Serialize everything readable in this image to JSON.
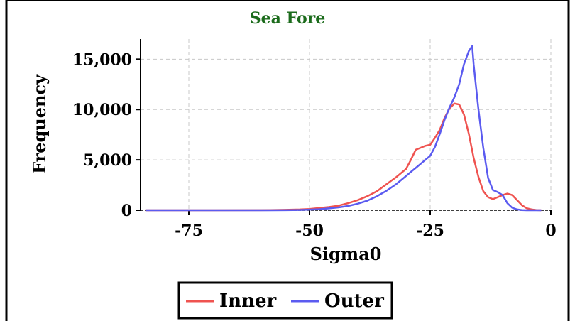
{
  "colors": {
    "inner": "#ef5350",
    "outer": "#5b5bf0",
    "title": "#1b6b1b",
    "grid": "#c8c8c8"
  },
  "chart_data": {
    "type": "line",
    "title": "Sea Fore",
    "xlabel": "Sigma0",
    "ylabel": "Frequency",
    "xlim": [
      -85,
      0
    ],
    "ylim": [
      0,
      17000
    ],
    "x_ticks": [
      -75,
      -50,
      -25,
      0
    ],
    "x_tick_labels": [
      "-75",
      "-50",
      "-25",
      "0"
    ],
    "y_ticks": [
      0,
      5000,
      10000,
      15000
    ],
    "y_tick_labels": [
      "0",
      "5,000",
      "10,000",
      "15,000"
    ],
    "grid": true,
    "legend_position": "bottom",
    "series": [
      {
        "name": "Inner",
        "color": "#ef5350",
        "x": [
          -84,
          -70,
          -60,
          -55,
          -52,
          -50,
          -48,
          -46,
          -44,
          -42,
          -40,
          -38,
          -36,
          -34,
          -32,
          -30,
          -29,
          -28,
          -27,
          -26,
          -25,
          -24,
          -23,
          -22,
          -21,
          -20,
          -19,
          -18,
          -17,
          -16,
          -15,
          -14,
          -13,
          -12,
          -11,
          -10,
          -9,
          -8,
          -7,
          -6,
          -5,
          -4,
          -3,
          -2
        ],
        "y": [
          0,
          0,
          10,
          40,
          80,
          130,
          220,
          320,
          450,
          700,
          1000,
          1400,
          1900,
          2600,
          3300,
          4100,
          5000,
          6000,
          6200,
          6400,
          6500,
          7200,
          8000,
          9200,
          10100,
          10600,
          10500,
          9500,
          7600,
          5200,
          3300,
          1900,
          1300,
          1100,
          1300,
          1500,
          1650,
          1500,
          1000,
          500,
          200,
          80,
          20,
          0
        ]
      },
      {
        "name": "Outer",
        "color": "#5b5bf0",
        "x": [
          -84,
          -70,
          -60,
          -55,
          -52,
          -50,
          -48,
          -46,
          -44,
          -42,
          -40,
          -38,
          -36,
          -34,
          -32,
          -30,
          -29,
          -28,
          -27,
          -26,
          -25,
          -24,
          -23,
          -22,
          -21,
          -20,
          -19,
          -18,
          -17,
          -16.3,
          -16,
          -15,
          -14,
          -13,
          -12,
          -11,
          -10,
          -9,
          -8,
          -7,
          -6,
          -5,
          -4,
          -3,
          -2
        ],
        "y": [
          0,
          0,
          0,
          10,
          30,
          60,
          100,
          180,
          280,
          420,
          650,
          950,
          1400,
          1950,
          2600,
          3400,
          3800,
          4200,
          4600,
          5000,
          5400,
          6300,
          7600,
          9000,
          10200,
          11200,
          12500,
          14500,
          15800,
          16300,
          14500,
          10000,
          6200,
          3200,
          2000,
          1800,
          1500,
          700,
          250,
          80,
          20,
          0,
          0,
          0,
          0
        ]
      }
    ]
  }
}
